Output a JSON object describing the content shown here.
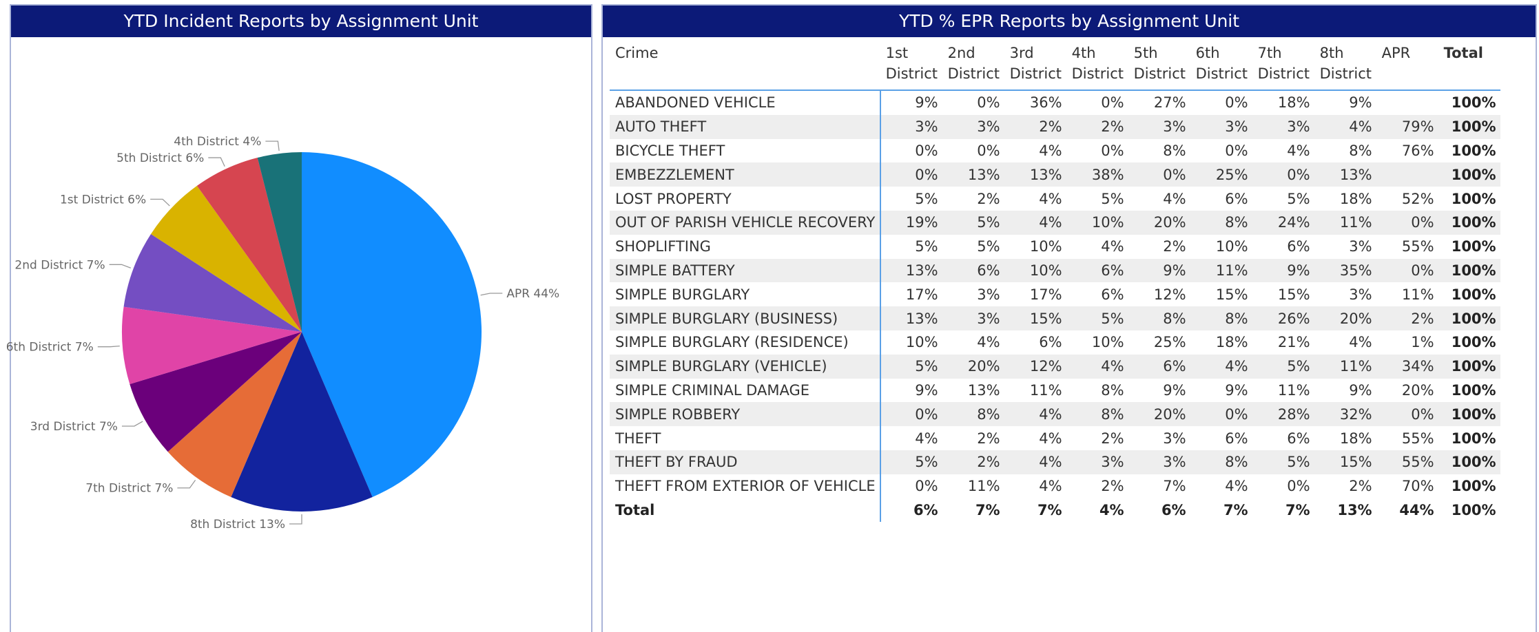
{
  "chart_data": {
    "type": "pie",
    "title": "YTD Incident Reports by Assignment Unit",
    "categories": [
      "APR",
      "8th District",
      "7th District",
      "3rd District",
      "6th District",
      "2nd District",
      "1st District",
      "5th District",
      "4th District"
    ],
    "values": [
      44,
      13,
      7,
      7,
      7,
      7,
      6,
      6,
      4
    ],
    "value_labels": [
      "44%",
      "13%",
      "7%",
      "7%",
      "7%",
      "7%",
      "6%",
      "6%",
      "4%"
    ],
    "colors": [
      "#118DFF",
      "#12239E",
      "#E66C37",
      "#6B007B",
      "#E044A7",
      "#744EC2",
      "#D9B300",
      "#D64550",
      "#197278"
    ]
  },
  "table": {
    "title": "YTD % EPR Reports by Assignment Unit",
    "columns": [
      "Crime",
      "1st District",
      "2nd District",
      "3rd District",
      "4th District",
      "5th District",
      "6th District",
      "7th District",
      "8th District",
      "APR",
      "Total"
    ],
    "rows": [
      [
        "ABANDONED VEHICLE",
        "9%",
        "0%",
        "36%",
        "0%",
        "27%",
        "0%",
        "18%",
        "9%",
        null,
        "100%"
      ],
      [
        "AUTO THEFT",
        "3%",
        "3%",
        "2%",
        "2%",
        "3%",
        "3%",
        "3%",
        "4%",
        "79%",
        "100%"
      ],
      [
        "BICYCLE THEFT",
        "0%",
        "0%",
        "4%",
        "0%",
        "8%",
        "0%",
        "4%",
        "8%",
        "76%",
        "100%"
      ],
      [
        "EMBEZZLEMENT",
        "0%",
        "13%",
        "13%",
        "38%",
        "0%",
        "25%",
        "0%",
        "13%",
        null,
        "100%"
      ],
      [
        "LOST PROPERTY",
        "5%",
        "2%",
        "4%",
        "5%",
        "4%",
        "6%",
        "5%",
        "18%",
        "52%",
        "100%"
      ],
      [
        "OUT OF PARISH VEHICLE RECOVERY",
        "19%",
        "5%",
        "4%",
        "10%",
        "20%",
        "8%",
        "24%",
        "11%",
        "0%",
        "100%"
      ],
      [
        "SHOPLIFTING",
        "5%",
        "5%",
        "10%",
        "4%",
        "2%",
        "10%",
        "6%",
        "3%",
        "55%",
        "100%"
      ],
      [
        "SIMPLE BATTERY",
        "13%",
        "6%",
        "10%",
        "6%",
        "9%",
        "11%",
        "9%",
        "35%",
        "0%",
        "100%"
      ],
      [
        "SIMPLE BURGLARY",
        "17%",
        "3%",
        "17%",
        "6%",
        "12%",
        "15%",
        "15%",
        "3%",
        "11%",
        "100%"
      ],
      [
        "SIMPLE BURGLARY (BUSINESS)",
        "13%",
        "3%",
        "15%",
        "5%",
        "8%",
        "8%",
        "26%",
        "20%",
        "2%",
        "100%"
      ],
      [
        "SIMPLE BURGLARY (RESIDENCE)",
        "10%",
        "4%",
        "6%",
        "10%",
        "25%",
        "18%",
        "21%",
        "4%",
        "1%",
        "100%"
      ],
      [
        "SIMPLE BURGLARY (VEHICLE)",
        "5%",
        "20%",
        "12%",
        "4%",
        "6%",
        "4%",
        "5%",
        "11%",
        "34%",
        "100%"
      ],
      [
        "SIMPLE CRIMINAL DAMAGE",
        "9%",
        "13%",
        "11%",
        "8%",
        "9%",
        "9%",
        "11%",
        "9%",
        "20%",
        "100%"
      ],
      [
        "SIMPLE ROBBERY",
        "0%",
        "8%",
        "4%",
        "8%",
        "20%",
        "0%",
        "28%",
        "32%",
        "0%",
        "100%"
      ],
      [
        "THEFT",
        "4%",
        "2%",
        "4%",
        "2%",
        "3%",
        "6%",
        "6%",
        "18%",
        "55%",
        "100%"
      ],
      [
        "THEFT BY FRAUD",
        "5%",
        "2%",
        "4%",
        "3%",
        "3%",
        "8%",
        "5%",
        "15%",
        "55%",
        "100%"
      ],
      [
        "THEFT FROM EXTERIOR OF VEHICLE",
        "0%",
        "11%",
        "4%",
        "2%",
        "7%",
        "4%",
        "0%",
        "2%",
        "70%",
        "100%"
      ]
    ],
    "total": [
      "Total",
      "6%",
      "7%",
      "7%",
      "4%",
      "6%",
      "7%",
      "7%",
      "13%",
      "44%",
      "100%"
    ]
  }
}
